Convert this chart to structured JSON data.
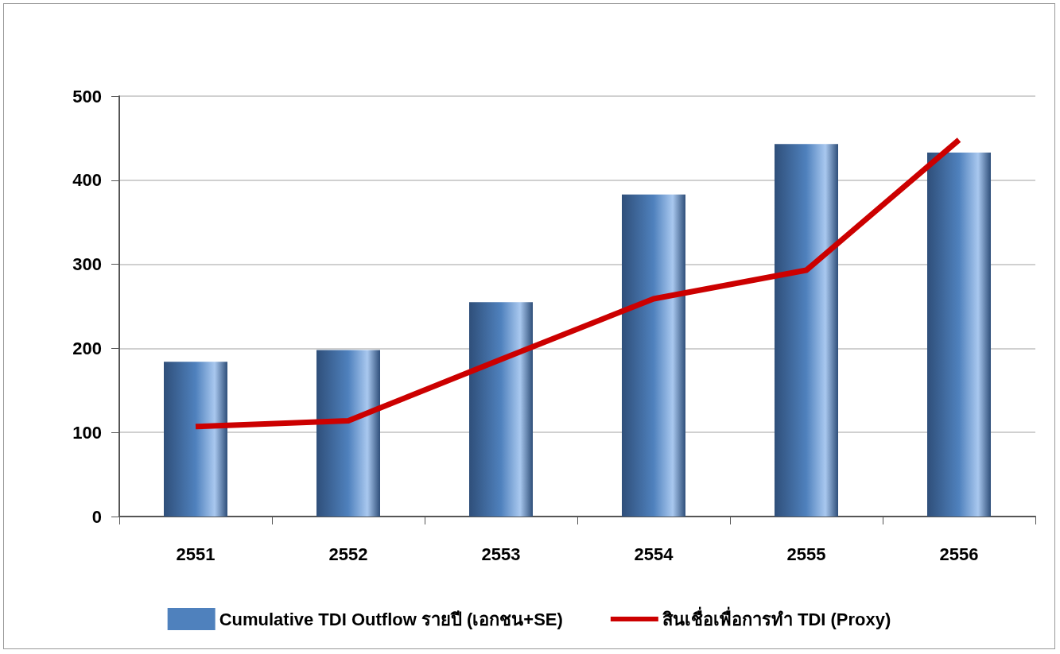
{
  "chart_data": {
    "type": "bar",
    "categories": [
      "2551",
      "2552",
      "2553",
      "2554",
      "2555",
      "2556"
    ],
    "series": [
      {
        "name": "Cumulative TDI Outflow รายปี (เอกชน+SE)",
        "color": "#4f81bd",
        "values": [
          184,
          198,
          255,
          383,
          443,
          433
        ]
      },
      {
        "name": "สินเชื่อเพื่อการทำ TDI (Proxy)",
        "type": "line",
        "color": "#cc0000",
        "values": [
          107,
          114,
          187,
          259,
          293,
          448
        ]
      }
    ],
    "ylim": [
      0,
      500
    ],
    "yticks": [
      0,
      100,
      200,
      300,
      400,
      500
    ],
    "grid": "y",
    "legend": "bottom",
    "marker": "none"
  }
}
